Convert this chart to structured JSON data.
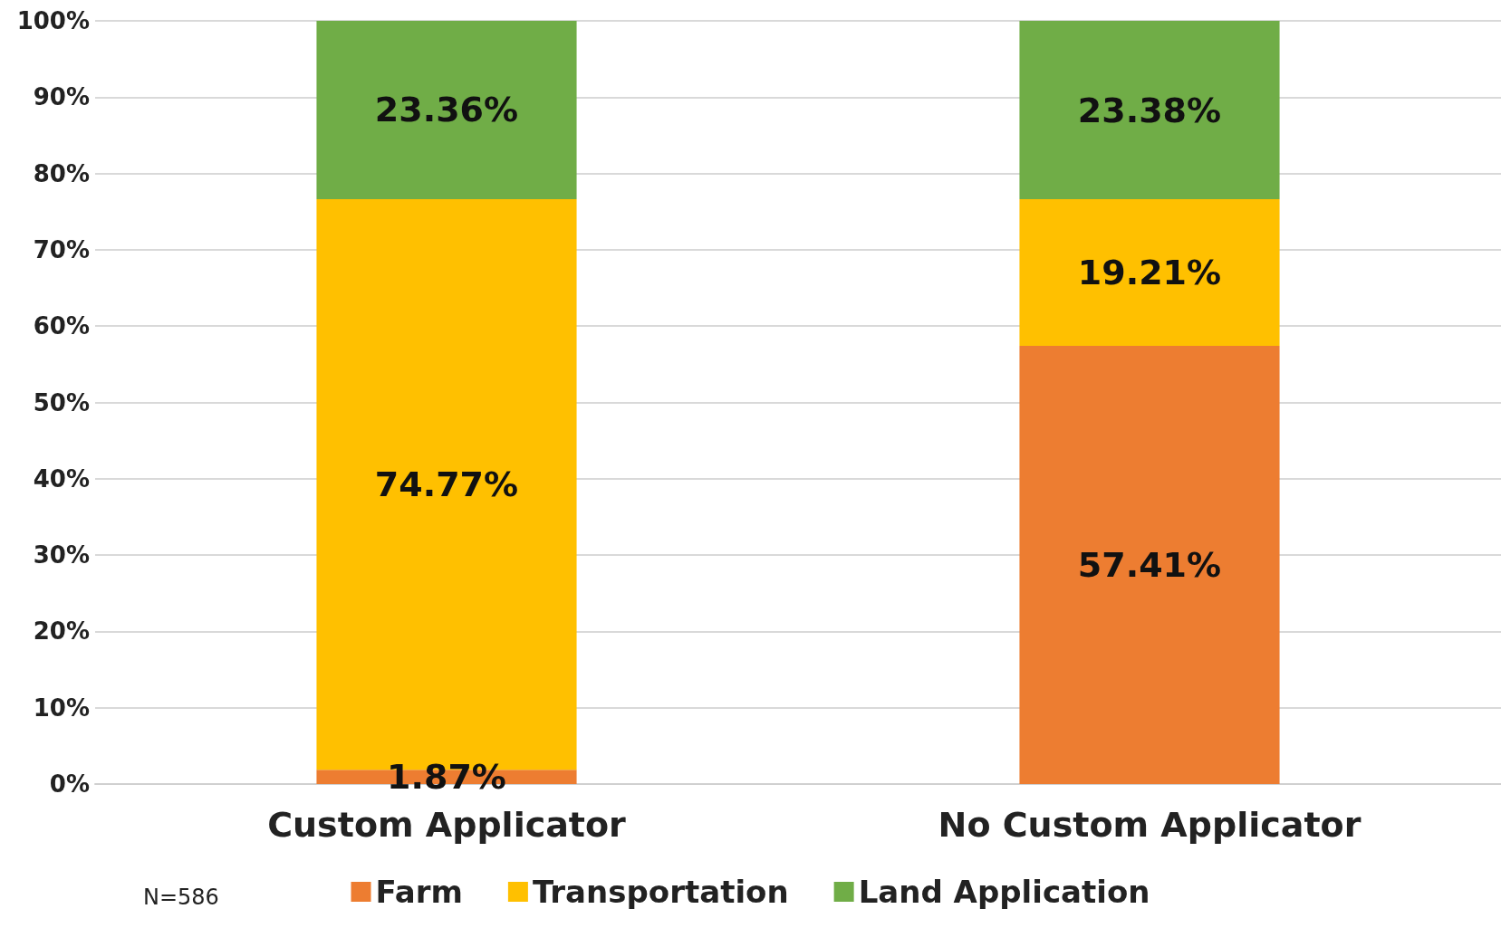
{
  "chart_data": {
    "type": "bar",
    "stacked": true,
    "categories": [
      "Custom Applicator",
      "No Custom Applicator"
    ],
    "series": [
      {
        "name": "Farm",
        "color": "#ed7d31",
        "values": [
          1.87,
          57.41
        ],
        "value_labels": [
          "1.87%",
          "57.41%"
        ]
      },
      {
        "name": "Transportation",
        "color": "#ffc000",
        "values": [
          74.77,
          19.21
        ],
        "value_labels": [
          "74.77%",
          "19.21%"
        ]
      },
      {
        "name": "Land Application",
        "color": "#70ad47",
        "values": [
          23.36,
          23.38
        ],
        "value_labels": [
          "23.36%",
          "23.38%"
        ]
      }
    ],
    "ylim": [
      0,
      100
    ],
    "yticks": [
      {
        "value": 0,
        "label": "0%"
      },
      {
        "value": 10,
        "label": "10%"
      },
      {
        "value": 20,
        "label": "20%"
      },
      {
        "value": 30,
        "label": "30%"
      },
      {
        "value": 40,
        "label": "40%"
      },
      {
        "value": 50,
        "label": "50%"
      },
      {
        "value": 60,
        "label": "60%"
      },
      {
        "value": 70,
        "label": "70%"
      },
      {
        "value": 80,
        "label": "80%"
      },
      {
        "value": 90,
        "label": "90%"
      },
      {
        "value": 100,
        "label": "100%"
      }
    ],
    "grid": "y",
    "legend": "bottom",
    "annotations": [
      "N=586"
    ]
  }
}
